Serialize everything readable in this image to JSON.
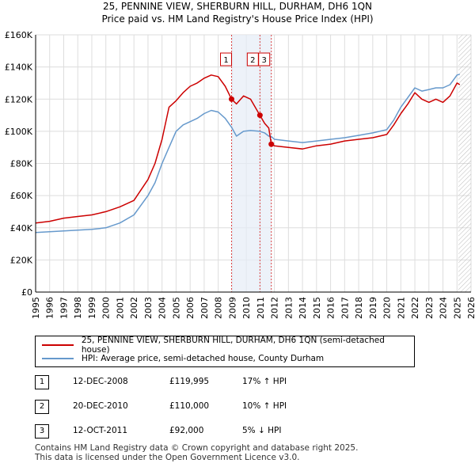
{
  "title_line1": "25, PENNINE VIEW, SHERBURN HILL, DURHAM, DH6 1QN",
  "title_line2": "Price paid vs. HM Land Registry's House Price Index (HPI)",
  "chart_data": {
    "type": "line",
    "x_ticks": [
      "1995",
      "1996",
      "1997",
      "1998",
      "1999",
      "2000",
      "2001",
      "2002",
      "2003",
      "2004",
      "2005",
      "2006",
      "2007",
      "2008",
      "2009",
      "2010",
      "2011",
      "2012",
      "2013",
      "2014",
      "2015",
      "2016",
      "2017",
      "2018",
      "2019",
      "2020",
      "2021",
      "2022",
      "2023",
      "2024",
      "2025",
      "2026"
    ],
    "y_ticks": [
      "£0",
      "£20K",
      "£40K",
      "£60K",
      "£80K",
      "£100K",
      "£120K",
      "£140K",
      "£160K"
    ],
    "xlim": [
      1995,
      2026
    ],
    "ylim": [
      0,
      160000
    ],
    "series": [
      {
        "name": "25, PENNINE VIEW, SHERBURN HILL, DURHAM, DH6 1QN (semi-detached house)",
        "color": "#cc0000",
        "x": [
          1995,
          1996,
          1997,
          1998,
          1999,
          2000,
          2001,
          2002,
          2003,
          2003.5,
          2004,
          2004.5,
          2005,
          2005.5,
          2006,
          2006.5,
          2007,
          2007.5,
          2008,
          2008.5,
          2008.95,
          2009.3,
          2009.8,
          2010.3,
          2010.97,
          2011.3,
          2011.6,
          2011.78,
          2012,
          2013,
          2014,
          2015,
          2016,
          2017,
          2018,
          2019,
          2020,
          2020.5,
          2021,
          2021.5,
          2022,
          2022.5,
          2023,
          2023.5,
          2024,
          2024.5,
          2025,
          2025.2
        ],
        "y": [
          43000,
          44000,
          46000,
          47000,
          48000,
          50000,
          53000,
          57000,
          70000,
          80000,
          95000,
          115000,
          119000,
          124000,
          128000,
          130000,
          133000,
          135000,
          134000,
          128000,
          119995,
          117000,
          122000,
          120000,
          110000,
          105000,
          102000,
          92000,
          91000,
          90000,
          89000,
          91000,
          92000,
          94000,
          95000,
          96000,
          98000,
          104000,
          111000,
          117000,
          124000,
          120000,
          118000,
          120000,
          118000,
          122000,
          130000,
          129000
        ]
      },
      {
        "name": "HPI: Average price, semi-detached house, County Durham",
        "color": "#6699cc",
        "x": [
          1995,
          1996,
          1997,
          1998,
          1999,
          2000,
          2001,
          2002,
          2003,
          2003.5,
          2004,
          2004.5,
          2005,
          2005.5,
          2006,
          2006.5,
          2007,
          2007.5,
          2008,
          2008.5,
          2008.95,
          2009.3,
          2009.8,
          2010.3,
          2010.97,
          2011.3,
          2011.6,
          2011.78,
          2012,
          2013,
          2014,
          2015,
          2016,
          2017,
          2018,
          2019,
          2020,
          2020.5,
          2021,
          2021.5,
          2022,
          2022.5,
          2023,
          2023.5,
          2024,
          2024.5,
          2025,
          2025.2
        ],
        "y": [
          37000,
          37500,
          38000,
          38500,
          39000,
          40000,
          43000,
          48000,
          60000,
          68000,
          80000,
          90000,
          100000,
          104000,
          106000,
          108000,
          111000,
          113000,
          112000,
          108000,
          102500,
          97000,
          100000,
          100500,
          100000,
          99000,
          97000,
          96800,
          95000,
          94000,
          93000,
          94000,
          95000,
          96000,
          97500,
          99000,
          101000,
          107000,
          115000,
          121000,
          127000,
          125000,
          126000,
          127000,
          127000,
          129000,
          135000,
          135500
        ]
      }
    ],
    "transactions": [
      {
        "marker": "1",
        "x": 2008.95,
        "y": 119995
      },
      {
        "marker": "2",
        "x": 2010.97,
        "y": 110000
      },
      {
        "marker": "3",
        "x": 2011.78,
        "y": 92000
      }
    ],
    "hatched_from": 2025.1
  },
  "legend": {
    "property": "25, PENNINE VIEW, SHERBURN HILL, DURHAM, DH6 1QN (semi-detached house)",
    "hpi": "HPI: Average price, semi-detached house, County Durham"
  },
  "rows": [
    {
      "n": "1",
      "date": "12-DEC-2008",
      "price": "£119,995",
      "hpi": "17% ↑ HPI"
    },
    {
      "n": "2",
      "date": "20-DEC-2010",
      "price": "£110,000",
      "hpi": "10% ↑ HPI"
    },
    {
      "n": "3",
      "date": "12-OCT-2011",
      "price": "£92,000",
      "hpi": "5% ↓ HPI"
    }
  ],
  "footer_line1": "Contains HM Land Registry data © Crown copyright and database right 2025.",
  "footer_line2": "This data is licensed under the Open Government Licence v3.0."
}
